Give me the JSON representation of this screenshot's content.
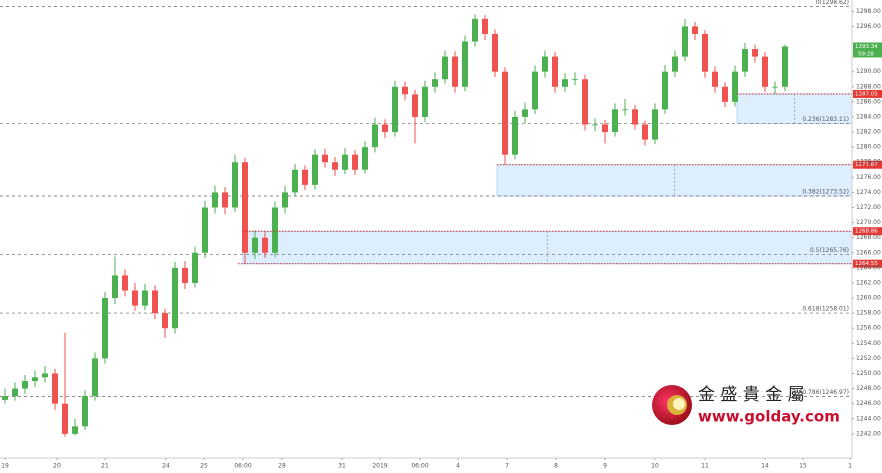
{
  "chart_data": {
    "type": "candlestick",
    "xlim": [
      0,
      85.2
    ],
    "ylim": [
      1238.8,
      1299.5
    ],
    "xticks": [
      {
        "value": 0.5,
        "label": "19"
      },
      {
        "value": 5.7,
        "label": "20"
      },
      {
        "value": 10.5,
        "label": "21"
      },
      {
        "value": 16.6,
        "label": "24"
      },
      {
        "value": 20.4,
        "label": "25"
      },
      {
        "value": 24.3,
        "label": "06:00"
      },
      {
        "value": 28.2,
        "label": "28"
      },
      {
        "value": 34.2,
        "label": "31"
      },
      {
        "value": 38,
        "label": "2019"
      },
      {
        "value": 42,
        "label": "06:00"
      },
      {
        "value": 45.8,
        "label": "4"
      },
      {
        "value": 50.7,
        "label": "7"
      },
      {
        "value": 55.6,
        "label": "8"
      },
      {
        "value": 60.5,
        "label": "9"
      },
      {
        "value": 65.5,
        "label": "10"
      },
      {
        "value": 70.5,
        "label": "11"
      },
      {
        "value": 76.5,
        "label": "14"
      },
      {
        "value": 80.3,
        "label": "15"
      },
      {
        "value": 85,
        "label": "1"
      }
    ],
    "yticks": [
      {
        "value": 1242,
        "label": "1242.00"
      },
      {
        "value": 1244,
        "label": "1244.00"
      },
      {
        "value": 1246,
        "label": "1246.00"
      },
      {
        "value": 1248,
        "label": "1248.00"
      },
      {
        "value": 1250,
        "label": "1250.00"
      },
      {
        "value": 1252,
        "label": "1252.00"
      },
      {
        "value": 1254,
        "label": "1254.00"
      },
      {
        "value": 1256,
        "label": "1256.00"
      },
      {
        "value": 1258,
        "label": "1258.00"
      },
      {
        "value": 1260,
        "label": "1260.00"
      },
      {
        "value": 1262,
        "label": "1262.00"
      },
      {
        "value": 1264,
        "label": "1264.00"
      },
      {
        "value": 1266,
        "label": "1266.00"
      },
      {
        "value": 1268,
        "label": "1268.00"
      },
      {
        "value": 1270,
        "label": "1270.00"
      },
      {
        "value": 1272,
        "label": "1272.00"
      },
      {
        "value": 1274,
        "label": "1274.00"
      },
      {
        "value": 1276,
        "label": "1276.00"
      },
      {
        "value": 1278,
        "label": "1278.00"
      },
      {
        "value": 1280,
        "label": "1280.00"
      },
      {
        "value": 1282,
        "label": "1282.00"
      },
      {
        "value": 1284,
        "label": "1284.00"
      },
      {
        "value": 1286,
        "label": "1286.00"
      },
      {
        "value": 1288,
        "label": "1288.00"
      },
      {
        "value": 1290,
        "label": "1290.00"
      },
      {
        "value": 1296,
        "label": "1296.00"
      },
      {
        "value": 1298,
        "label": "1298.00"
      }
    ],
    "up_color": "#4caf50",
    "down_color": "#ef5350",
    "open": [
      1246.5,
      1247,
      1248,
      1249,
      1249.5,
      1250,
      1246,
      1242,
      1243,
      1247,
      1252,
      1260,
      1263,
      1261,
      1259,
      1261,
      1258,
      1256,
      1264,
      1262,
      1266,
      1272,
      1274,
      1272,
      1278,
      1266,
      1268,
      1266,
      1272,
      1274,
      1277,
      1275,
      1279,
      1278,
      1277,
      1279,
      1277,
      1280,
      1283,
      1282,
      1288,
      1287,
      1284,
      1288,
      1289,
      1292,
      1288,
      1294,
      1297,
      1295,
      1290,
      1279,
      1284,
      1285,
      1290,
      1292,
      1288,
      1289,
      1289,
      1283,
      1283,
      1282,
      1285,
      1285,
      1283,
      1281,
      1285,
      1290,
      1292,
      1296,
      1295,
      1290,
      1288,
      1286,
      1290,
      1293,
      1292,
      1288,
      1288
    ],
    "high": [
      1248,
      1248.8,
      1249.8,
      1250.4,
      1251,
      1250.6,
      1255.4,
      1244,
      1247.8,
      1252.8,
      1260.8,
      1265.5,
      1263.8,
      1262,
      1261.9,
      1261.7,
      1258.6,
      1264.8,
      1264.9,
      1266.8,
      1272.9,
      1274.9,
      1274.7,
      1279,
      1278.6,
      1269,
      1268.86,
      1272.8,
      1274.9,
      1277.8,
      1277.6,
      1279.7,
      1279.8,
      1278.7,
      1279.9,
      1279.6,
      1280.8,
      1283.9,
      1283.7,
      1288.8,
      1288.7,
      1287.6,
      1288.8,
      1289.9,
      1292.8,
      1292.7,
      1294.8,
      1297.6,
      1297.5,
      1295.6,
      1290.6,
      1284.8,
      1285.9,
      1290.8,
      1292.8,
      1292.6,
      1289.8,
      1289.9,
      1289.6,
      1283.8,
      1283.6,
      1285.8,
      1286.4,
      1285.6,
      1283.5,
      1285.8,
      1290.9,
      1292.8,
      1297,
      1296.6,
      1295.5,
      1290.7,
      1288.6,
      1290.8,
      1293.8,
      1293.6,
      1292.6,
      1288.7,
      1293.6
    ],
    "low": [
      1246,
      1246.4,
      1247.3,
      1248.2,
      1248.8,
      1245.2,
      1241.6,
      1241.8,
      1242.5,
      1246.4,
      1251.3,
      1259.2,
      1260.2,
      1258.3,
      1258.4,
      1257.2,
      1254.7,
      1255.3,
      1261.2,
      1261.4,
      1265.3,
      1271.2,
      1271.1,
      1271.4,
      1264.55,
      1265.2,
      1265.3,
      1265.4,
      1271.2,
      1273.4,
      1274.3,
      1274.4,
      1277.3,
      1276.2,
      1276.4,
      1276.3,
      1276.5,
      1279.3,
      1281.2,
      1281.4,
      1286.2,
      1280.5,
      1283.3,
      1287.2,
      1288.4,
      1287.2,
      1287.4,
      1293.3,
      1294.2,
      1289.3,
      1277.67,
      1278.4,
      1283.2,
      1284.4,
      1289.2,
      1287.2,
      1287.3,
      1288.2,
      1282.2,
      1282.1,
      1280.5,
      1281.4,
      1284.2,
      1282.3,
      1280.2,
      1280.4,
      1284.4,
      1289.3,
      1291.4,
      1294.2,
      1289.2,
      1287.2,
      1285.3,
      1285.4,
      1289.3,
      1291.2,
      1287.3,
      1287.05,
      1287.4
    ],
    "close": [
      1247,
      1248,
      1249,
      1249.5,
      1250,
      1246,
      1242,
      1243,
      1247,
      1252,
      1260,
      1263,
      1261,
      1259,
      1261,
      1258,
      1256,
      1264,
      1262,
      1266,
      1272,
      1274,
      1272,
      1278,
      1266,
      1268,
      1266,
      1272,
      1274,
      1277,
      1275,
      1279,
      1278,
      1277,
      1279,
      1277,
      1280,
      1283,
      1282,
      1288,
      1287,
      1284,
      1288,
      1289,
      1292,
      1288,
      1294,
      1297,
      1295,
      1290,
      1279,
      1284,
      1285,
      1290,
      1292,
      1288,
      1289,
      1289,
      1283,
      1283,
      1282,
      1285,
      1285,
      1283,
      1281,
      1285,
      1290,
      1292,
      1296,
      1295,
      1290,
      1288,
      1286,
      1290,
      1293,
      1292,
      1288,
      1288,
      1293.34
    ],
    "timer": "59:28",
    "fib_levels": [
      {
        "value": 1298.62,
        "label": "0(1298.62)"
      },
      {
        "value": 1283.11,
        "label": "0.236(1283.11)"
      },
      {
        "value": 1273.52,
        "label": "0.382(1273.52)"
      },
      {
        "value": 1265.76,
        "label": "0.5(1265.76)"
      },
      {
        "value": 1258.01,
        "label": "0.618(1258.01)"
      },
      {
        "value": 1246.97,
        "label": "0.786(1246.97)"
      }
    ],
    "levels": [
      {
        "value": 1287.05,
        "start": 73.7
      },
      {
        "value": 1277.67,
        "start": 49.7
      },
      {
        "value": 1268.86,
        "start": 24.3
      },
      {
        "value": 1264.55,
        "start": 23.8
      }
    ],
    "zones": [
      {
        "start": 73.7,
        "top": 1287.05,
        "bottom": 1283.11
      },
      {
        "start": 49.7,
        "top": 1277.67,
        "bottom": 1273.52
      },
      {
        "start": 24.3,
        "top": 1268.86,
        "bottom": 1264.55
      }
    ],
    "logo": {
      "name": "金 盛 貴 金 屬",
      "url": "www.golday.com"
    }
  }
}
